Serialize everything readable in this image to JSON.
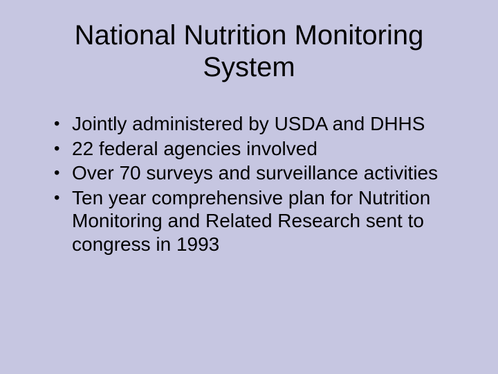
{
  "slide": {
    "background_color": "#c6c6e1",
    "text_color": "#000000",
    "title": "National Nutrition Monitoring System",
    "title_fontsize": 40,
    "title_fontweight": 400,
    "bullet_fontsize": 28,
    "bullets": [
      "Jointly administered by USDA and DHHS",
      "22 federal agencies involved",
      "Over 70 surveys and surveillance activities",
      "Ten year comprehensive plan for Nutrition Monitoring and Related Research sent to congress in 1993"
    ]
  }
}
